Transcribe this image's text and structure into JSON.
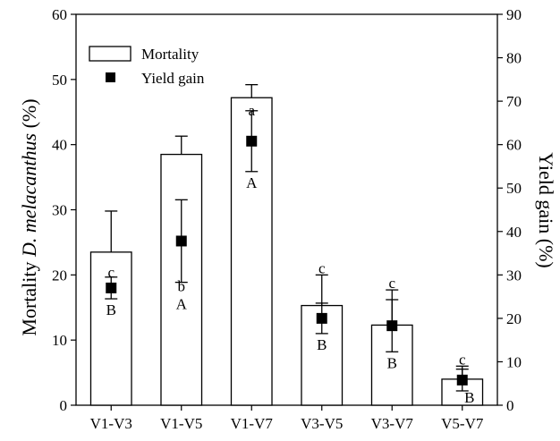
{
  "chart_data": {
    "type": "bar",
    "categories": [
      "V1-V3",
      "V1-V5",
      "V1-V7",
      "V3-V5",
      "V3-V7",
      "V5-V7"
    ],
    "series": [
      {
        "name": "Mortality",
        "kind": "bar",
        "axis": "left",
        "values": [
          23.5,
          38.5,
          47.2,
          15.3,
          12.3,
          4.0
        ],
        "err_upper": [
          6.3,
          2.8,
          2.0,
          4.7,
          5.4,
          2.0
        ],
        "letters": [
          "c",
          "b",
          "a",
          "c",
          "c",
          "c"
        ]
      },
      {
        "name": "Yield gain",
        "kind": "point",
        "axis": "right",
        "values": [
          27.0,
          37.8,
          60.8,
          20.0,
          18.3,
          5.8
        ],
        "err": [
          2.5,
          9.5,
          7.0,
          3.5,
          6.0,
          2.5
        ],
        "letters": [
          "B",
          "A",
          "A",
          "B",
          "B",
          "B"
        ]
      }
    ],
    "ylabel_parts": [
      "Mortality ",
      "D. melacanthus",
      " (%)"
    ],
    "y2label": "Yield gain (%)",
    "ylim": [
      0,
      60
    ],
    "y2lim": [
      0,
      90
    ],
    "yticks": [
      0,
      10,
      20,
      30,
      40,
      50,
      60
    ],
    "y2ticks": [
      0,
      10,
      20,
      30,
      40,
      50,
      60,
      70,
      80,
      90
    ],
    "legend_position": "top-left",
    "grid": false
  }
}
